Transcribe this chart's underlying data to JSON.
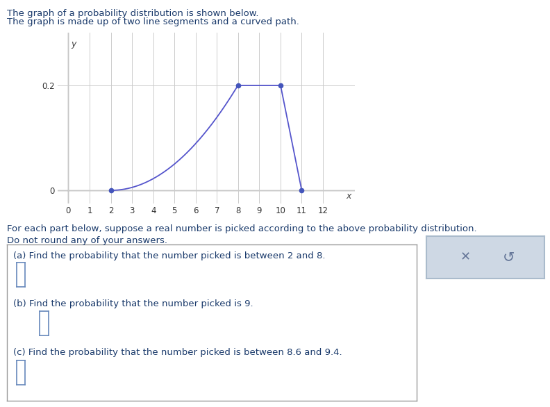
{
  "title_line1": "The graph of a probability distribution is shown below.",
  "title_line2": "The graph is made up of two line segments and a curved path.",
  "graph_points": [
    [
      2,
      0
    ],
    [
      8,
      0.2
    ],
    [
      10,
      0.2
    ],
    [
      11,
      0
    ]
  ],
  "dot_points": [
    [
      2,
      0
    ],
    [
      8,
      0.2
    ],
    [
      10,
      0.2
    ],
    [
      11,
      0
    ]
  ],
  "xlim": [
    -0.5,
    13.5
  ],
  "ylim": [
    -0.025,
    0.3
  ],
  "xticks": [
    0,
    1,
    2,
    3,
    4,
    5,
    6,
    7,
    8,
    9,
    10,
    11,
    12
  ],
  "yticks": [
    0.0,
    0.2
  ],
  "ytick_labels": [
    "0",
    "0.2"
  ],
  "line_color": "#5555cc",
  "dot_color": "#4455bb",
  "grid_color": "#cccccc",
  "text_color": "#1a3a6b",
  "body_text1": "For each part below, suppose a real number is picked according to the above probability distribution.",
  "body_text2": "Do not round any of your answers.",
  "qa_text": "(a) Find the probability that the number picked is between 2 and 8.",
  "qb_text": "(b) Find the probability that the number picked is 9.",
  "qc_text": "(c) Find the probability that the number picked is between 8.6 and 9.4.",
  "bg_color": "#ffffff",
  "box_border_color": "#999999",
  "btn_bg_color": "#ced8e4",
  "btn_border_color": "#aabbcc",
  "input_border_color": "#6688bb",
  "axis_color": "#444444",
  "tick_fontsize": 8.5,
  "label_fontsize": 9.5,
  "title_fontsize": 9.5
}
